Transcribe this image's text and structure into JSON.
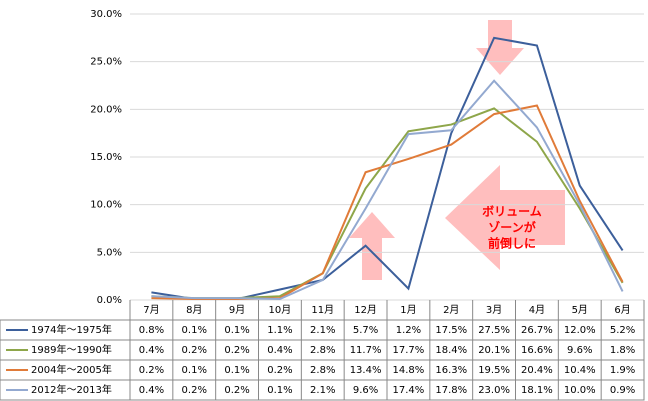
{
  "chart_data": {
    "type": "line",
    "categories": [
      "7月",
      "8月",
      "9月",
      "10月",
      "11月",
      "12月",
      "1月",
      "2月",
      "3月",
      "4月",
      "5月",
      "6月"
    ],
    "series": [
      {
        "name": "1974年～1975年",
        "color": "#3c5f9b",
        "values": [
          0.8,
          0.1,
          0.1,
          1.1,
          2.1,
          5.7,
          1.2,
          17.5,
          27.5,
          26.7,
          12.0,
          5.2
        ],
        "value_labels": [
          "0.8%",
          "0.1%",
          "0.1%",
          "1.1%",
          "2.1%",
          "5.7%",
          "1.2%",
          "17.5%",
          "27.5%",
          "26.7%",
          "12.0%",
          "5.2%"
        ]
      },
      {
        "name": "1989年～1990年",
        "color": "#8ea64a",
        "values": [
          0.4,
          0.2,
          0.2,
          0.4,
          2.8,
          11.7,
          17.7,
          18.4,
          20.1,
          16.6,
          9.6,
          1.8
        ],
        "value_labels": [
          "0.4%",
          "0.2%",
          "0.2%",
          "0.4%",
          "2.8%",
          "11.7%",
          "17.7%",
          "18.4%",
          "20.1%",
          "16.6%",
          "9.6%",
          "1.8%"
        ]
      },
      {
        "name": "2004年～2005年",
        "color": "#e07b39",
        "values": [
          0.2,
          0.1,
          0.1,
          0.2,
          2.8,
          13.4,
          14.8,
          16.3,
          19.5,
          20.4,
          10.4,
          1.9
        ],
        "value_labels": [
          "0.2%",
          "0.1%",
          "0.1%",
          "0.2%",
          "2.8%",
          "13.4%",
          "14.8%",
          "16.3%",
          "19.5%",
          "20.4%",
          "10.4%",
          "1.9%"
        ]
      },
      {
        "name": "2012年～2013年",
        "color": "#93a9d0",
        "values": [
          0.4,
          0.2,
          0.2,
          0.1,
          2.1,
          9.6,
          17.4,
          17.8,
          23.0,
          18.1,
          10.0,
          0.9
        ],
        "value_labels": [
          "0.4%",
          "0.2%",
          "0.2%",
          "0.1%",
          "2.1%",
          "9.6%",
          "17.4%",
          "17.8%",
          "23.0%",
          "18.1%",
          "10.0%",
          "0.9%"
        ]
      }
    ],
    "ylim": [
      0,
      30
    ],
    "yticks": [
      {
        "value": 0,
        "label": "0.0%"
      },
      {
        "value": 5,
        "label": "5.0%"
      },
      {
        "value": 10,
        "label": "10.0%"
      },
      {
        "value": 15,
        "label": "15.0%"
      },
      {
        "value": 20,
        "label": "20.0%"
      },
      {
        "value": 25,
        "label": "25.0%"
      },
      {
        "value": 30,
        "label": "30.0%"
      }
    ],
    "grid": true,
    "annotation": [
      "ボリューム",
      "ゾーンが",
      "前倒しに"
    ]
  }
}
